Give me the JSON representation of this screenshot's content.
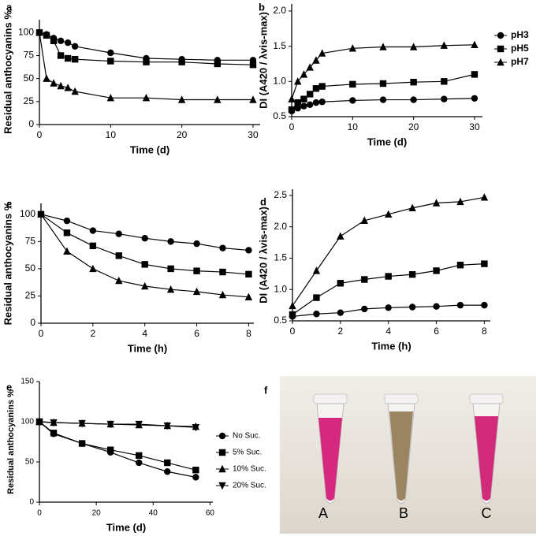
{
  "chart_data": [
    {
      "type": "line",
      "panel_label": "a",
      "x_label": "Time (d)",
      "y_label": "Residual anthocyanins %",
      "x": [
        0,
        1,
        2,
        3,
        4,
        5,
        10,
        15,
        20,
        25,
        30
      ],
      "xlim": [
        0,
        31
      ],
      "xticks": [
        0,
        10,
        20,
        30
      ],
      "ylim": [
        0,
        114
      ],
      "yticks": [
        0,
        25,
        50,
        75,
        100
      ],
      "grid": false,
      "series": [
        {
          "name": "pH3",
          "color": "#000000",
          "marker": "circle",
          "values": [
            100,
            98,
            94,
            91,
            89,
            85,
            78,
            72,
            71,
            70,
            70
          ]
        },
        {
          "name": "pH5",
          "color": "#000000",
          "marker": "square",
          "values": [
            100,
            97,
            91,
            75,
            72,
            71,
            69,
            68,
            68,
            66,
            65
          ]
        },
        {
          "name": "pH7",
          "color": "#000000",
          "marker": "triangle-up",
          "values": [
            100,
            50,
            45,
            42,
            40,
            36,
            29,
            29,
            27,
            27,
            27
          ]
        }
      ]
    },
    {
      "type": "line",
      "panel_label": "b",
      "x_label": "Time (d)",
      "y_label": "DI (A420 / λvis-max)",
      "x": [
        0,
        1,
        2,
        3,
        4,
        5,
        10,
        15,
        20,
        25,
        30
      ],
      "xlim": [
        0,
        31.3
      ],
      "xticks": [
        0,
        10,
        20,
        30
      ],
      "ylim": [
        0.5,
        2.1
      ],
      "yticks": [
        0.5,
        {
          "value": 1,
          "label": "1.0"
        },
        1.5,
        {
          "value": 2,
          "label": "2.0"
        }
      ],
      "grid": false,
      "legend": "outside-right",
      "series": [
        {
          "name": "pH3",
          "color": "#000000",
          "marker": "circle",
          "values": [
            0.58,
            0.62,
            0.65,
            0.67,
            0.7,
            0.71,
            0.73,
            0.74,
            0.74,
            0.75,
            0.76
          ]
        },
        {
          "name": "pH5",
          "color": "#000000",
          "marker": "square",
          "values": [
            0.6,
            0.7,
            0.75,
            0.82,
            0.9,
            0.93,
            0.96,
            0.97,
            0.99,
            1.0,
            1.1
          ]
        },
        {
          "name": "pH7",
          "color": "#000000",
          "marker": "triangle-up",
          "values": [
            0.75,
            1.0,
            1.1,
            1.2,
            1.3,
            1.4,
            1.47,
            1.49,
            1.49,
            1.51,
            1.52
          ]
        }
      ]
    },
    {
      "type": "line",
      "panel_label": "c",
      "x_label": "Time (h)",
      "y_label": "Residual anthocyanins %",
      "x": [
        0,
        1,
        2,
        3,
        4,
        5,
        6,
        7,
        8
      ],
      "xlim": [
        0,
        8.2
      ],
      "xticks": [
        0,
        2,
        4,
        6,
        8
      ],
      "ylim": [
        0,
        110
      ],
      "yticks": [
        0,
        25,
        50,
        75,
        100
      ],
      "grid": false,
      "series": [
        {
          "name": "pH3",
          "color": "#000000",
          "marker": "circle",
          "values": [
            100,
            94,
            85,
            82,
            78,
            75,
            73,
            69,
            67
          ]
        },
        {
          "name": "pH5",
          "color": "#000000",
          "marker": "square",
          "values": [
            100,
            83,
            71,
            62,
            54,
            50,
            48,
            47,
            45
          ]
        },
        {
          "name": "pH7",
          "color": "#000000",
          "marker": "triangle-up",
          "values": [
            100,
            66,
            50,
            39,
            34,
            31,
            29,
            26,
            24
          ]
        }
      ]
    },
    {
      "type": "line",
      "panel_label": "d",
      "x_label": "Time (h)",
      "y_label": "DI (A420 / λvis-max)",
      "x": [
        0,
        1,
        2,
        3,
        4,
        5,
        6,
        7,
        8
      ],
      "xlim": [
        0,
        8.25
      ],
      "xticks": [
        0,
        2,
        4,
        6,
        8
      ],
      "ylim": [
        0.5,
        2.6
      ],
      "yticks": [
        0.5,
        {
          "value": 1,
          "label": "1.0"
        },
        1.5,
        {
          "value": 2,
          "label": "2.0"
        },
        2.5
      ],
      "grid": false,
      "series": [
        {
          "name": "pH3",
          "color": "#000000",
          "marker": "circle",
          "values": [
            0.57,
            0.61,
            0.63,
            0.69,
            0.71,
            0.72,
            0.73,
            0.75,
            0.75
          ]
        },
        {
          "name": "pH5",
          "color": "#000000",
          "marker": "square",
          "values": [
            0.6,
            0.87,
            1.1,
            1.16,
            1.21,
            1.24,
            1.3,
            1.39,
            1.41
          ]
        },
        {
          "name": "pH7",
          "color": "#000000",
          "marker": "triangle-up",
          "values": [
            0.74,
            1.3,
            1.85,
            2.1,
            2.2,
            2.3,
            2.38,
            2.4,
            2.47
          ]
        }
      ]
    },
    {
      "type": "line",
      "panel_label": "e",
      "x_label": "Time (d)",
      "y_label": "Residual anthocyanins %",
      "x": [
        0,
        5,
        15,
        25,
        35,
        45,
        55
      ],
      "xlim": [
        0,
        61
      ],
      "xticks": [
        0,
        20,
        40,
        60
      ],
      "ylim": [
        0,
        150
      ],
      "yticks": [
        0,
        50,
        100,
        150
      ],
      "grid": false,
      "legend": "outside-right",
      "series": [
        {
          "name": "No Suc.",
          "color": "#000000",
          "marker": "circle",
          "values": [
            100,
            85,
            73,
            62,
            49,
            38,
            31
          ]
        },
        {
          "name": "5% Suc.",
          "color": "#000000",
          "marker": "square",
          "values": [
            100,
            86,
            73,
            65,
            58,
            49,
            40
          ]
        },
        {
          "name": "10% Suc.",
          "color": "#000000",
          "marker": "triangle-up",
          "values": [
            100,
            99,
            98,
            97,
            96,
            95,
            94
          ]
        },
        {
          "name": "20% Suc.",
          "color": "#000000",
          "marker": "triangle-down",
          "values": [
            100,
            99,
            98,
            97,
            97,
            95,
            93
          ]
        }
      ]
    }
  ],
  "photo": {
    "panel_label": "f",
    "labels": [
      "A",
      "B",
      "C"
    ]
  }
}
